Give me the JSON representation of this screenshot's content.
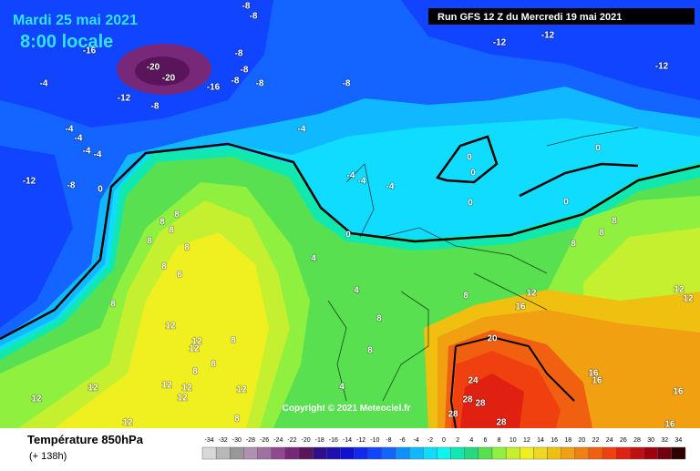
{
  "header": {
    "date": "Mardi 25 mai 2021",
    "time": "8:00 locale",
    "run": "Run GFS 12 Z du Mercredi 19 mai 2021"
  },
  "map": {
    "contour_labels": [
      "-8",
      "-8",
      "-16",
      "-20",
      "-20",
      "-12",
      "-12",
      "-12",
      "-8",
      "-8",
      "-8",
      "-16",
      "-8",
      "-8",
      "-12",
      "-8",
      "-4",
      "-4",
      "-4",
      "-4",
      "-4",
      "-4",
      "-12",
      "-8",
      "0",
      "-4",
      "-4",
      "-4",
      "0",
      "0",
      "0",
      "0",
      "0",
      "0",
      "8",
      "8",
      "8",
      "8",
      "8",
      "8",
      "8",
      "8",
      "4",
      "4",
      "8",
      "8",
      "8",
      "8",
      "12",
      "16",
      "12",
      "12",
      "12",
      "12",
      "12",
      "8",
      "8",
      "8",
      "12",
      "12",
      "12",
      "12",
      "12",
      "8",
      "4",
      "20",
      "24",
      "28",
      "28",
      "28",
      "28",
      "16",
      "16",
      "16",
      "16",
      "12",
      "8",
      "8",
      "12"
    ],
    "copyright": "Copyright © 2021 Meteociel.fr"
  },
  "legend": {
    "title": "Température 850hPa",
    "lead_time": "(+ 138h)",
    "values": [
      -34,
      -32,
      -30,
      -28,
      -26,
      -24,
      -22,
      -20,
      -18,
      -16,
      -14,
      -12,
      -10,
      -8,
      -6,
      -4,
      -2,
      0,
      2,
      4,
      6,
      8,
      10,
      12,
      14,
      16,
      18,
      20,
      22,
      24,
      26,
      28,
      30,
      32,
      34
    ],
    "colors": [
      "#d8d8d8",
      "#b8b8b8",
      "#989898",
      "#b090b0",
      "#a070a0",
      "#904890",
      "#782878",
      "#5a145a",
      "#30108a",
      "#2010b0",
      "#1010d0",
      "#1028f0",
      "#1044ff",
      "#1464ff",
      "#1090ff",
      "#10b8ff",
      "#10dcff",
      "#10f4f0",
      "#10e8b0",
      "#28d880",
      "#58e050",
      "#90f040",
      "#c4f030",
      "#f0f020",
      "#f0d820",
      "#f0c010",
      "#f0a010",
      "#f08010",
      "#f06010",
      "#f04010",
      "#e02010",
      "#c01010",
      "#a00010",
      "#700010",
      "#300000"
    ]
  }
}
